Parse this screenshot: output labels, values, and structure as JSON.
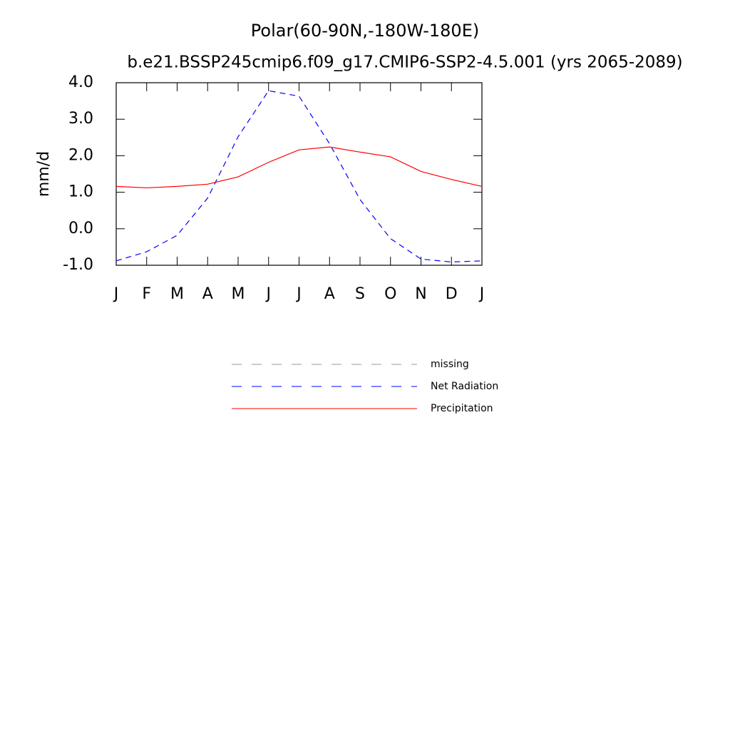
{
  "chart_data": {
    "type": "line",
    "title": "Polar(60-90N,-180W-180E)",
    "subtitle": "b.e21.BSSP245cmip6.f09_g17.CMIP6-SSP2-4.5.001 (yrs 2065-2089)",
    "y_label": "mm/d",
    "categories": [
      "J",
      "F",
      "M",
      "A",
      "M",
      "J",
      "J",
      "A",
      "S",
      "O",
      "N",
      "D",
      "J"
    ],
    "ylim": [
      -1,
      4
    ],
    "yticks": [
      {
        "value": -1,
        "label": "-1.0"
      },
      {
        "value": 0,
        "label": "0.0"
      },
      {
        "value": 1,
        "label": "1.0"
      },
      {
        "value": 2,
        "label": "2.0"
      },
      {
        "value": 3,
        "label": "3.0"
      },
      {
        "value": 4,
        "label": "4.0"
      }
    ],
    "series": [
      {
        "name": "missing",
        "color": "#999999",
        "dashed": true,
        "values": [
          null,
          null,
          null,
          null,
          null,
          null,
          null,
          null,
          null,
          null,
          null,
          null,
          null
        ]
      },
      {
        "name": "Net Radiation",
        "color": "#0000ff",
        "dashed": true,
        "values": [
          -0.88,
          -0.63,
          -0.18,
          0.84,
          2.52,
          3.78,
          3.63,
          2.33,
          0.8,
          -0.27,
          -0.83,
          -0.91,
          -0.88
        ]
      },
      {
        "name": "Precipitation",
        "color": "#ff0000",
        "dashed": false,
        "values": [
          1.16,
          1.12,
          1.16,
          1.22,
          1.42,
          1.82,
          2.16,
          2.24,
          2.1,
          1.97,
          1.57,
          1.35,
          1.16
        ]
      }
    ]
  }
}
